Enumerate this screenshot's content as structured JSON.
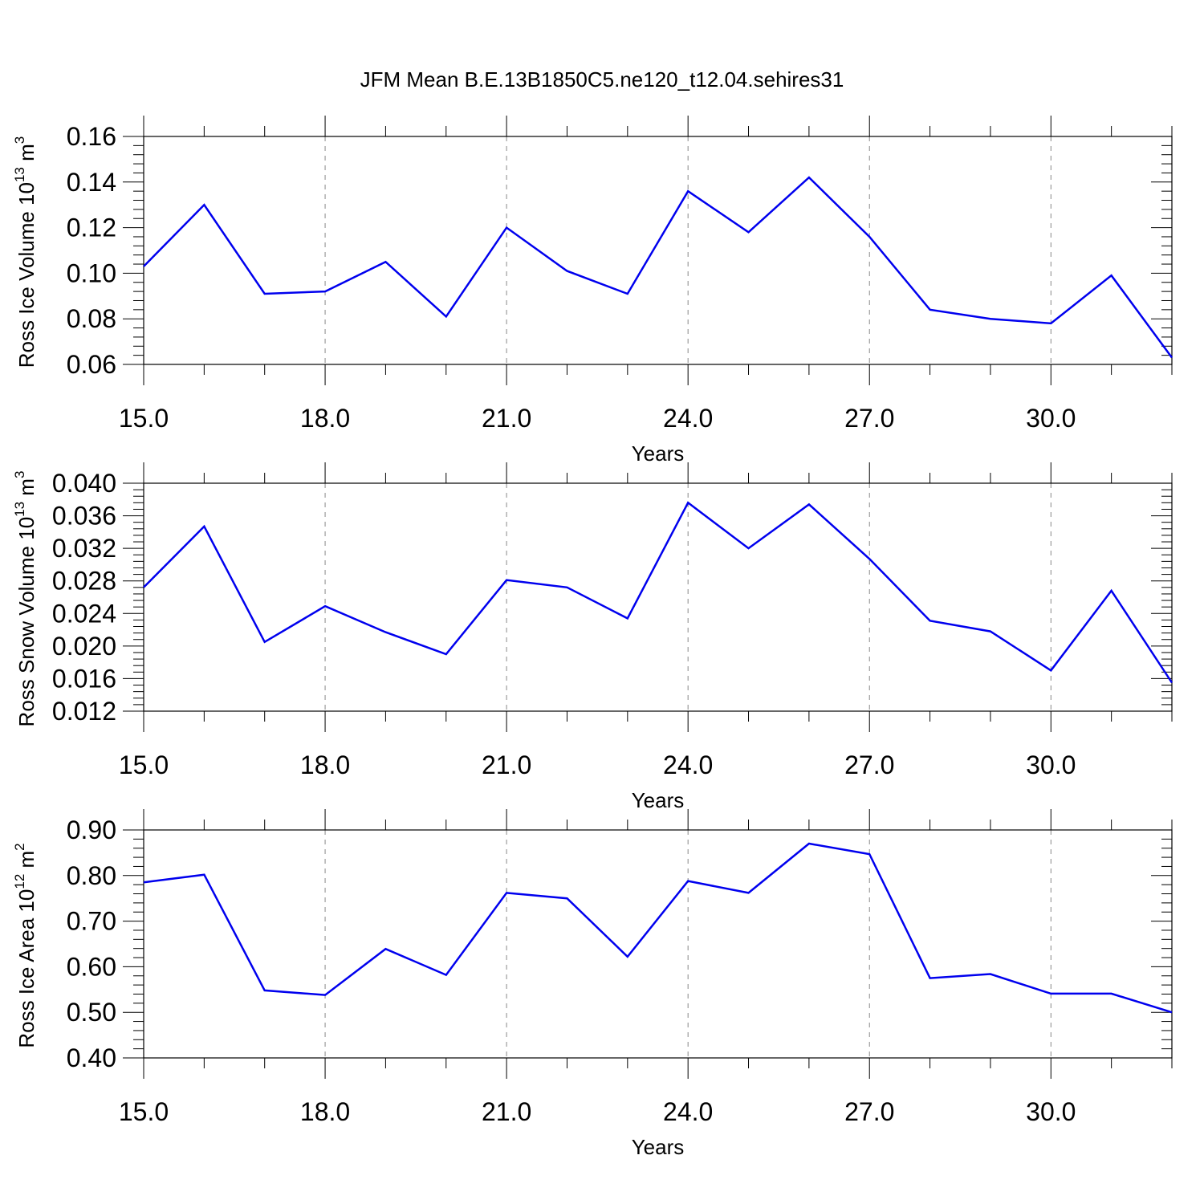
{
  "title": "JFM Mean B.E.13B1850C5.ne120_t12.04.sehires31",
  "colors": {
    "line": "#0000ee",
    "axis": "#000000",
    "grid": "#888888"
  },
  "chart_data": [
    {
      "type": "line",
      "xlabel": "Years",
      "ylabel": {
        "text": "Ross Ice Volume 10",
        "exp1": "13",
        "unit": " m",
        "exp2": "3"
      },
      "xlim": [
        15,
        32
      ],
      "ylim": [
        0.06,
        0.16
      ],
      "xticks": [
        15,
        18,
        21,
        24,
        27,
        30
      ],
      "xtick_labels": [
        "15.0",
        "18.0",
        "21.0",
        "24.0",
        "27.0",
        "30.0"
      ],
      "yticks": [
        0.06,
        0.08,
        0.1,
        0.12,
        0.14,
        0.16
      ],
      "ytick_labels": [
        "0.06",
        "0.08",
        "0.10",
        "0.12",
        "0.14",
        "0.16"
      ],
      "x": [
        15,
        16,
        17,
        18,
        19,
        20,
        21,
        22,
        23,
        24,
        25,
        26,
        27,
        28,
        29,
        30,
        31,
        32
      ],
      "values": [
        0.103,
        0.13,
        0.091,
        0.092,
        0.105,
        0.081,
        0.12,
        0.101,
        0.091,
        0.136,
        0.118,
        0.142,
        0.116,
        0.084,
        0.08,
        0.078,
        0.099,
        0.063
      ]
    },
    {
      "type": "line",
      "xlabel": "Years",
      "ylabel": {
        "text": "Ross Snow Volume 10",
        "exp1": "13",
        "unit": " m",
        "exp2": "3"
      },
      "xlim": [
        15,
        32
      ],
      "ylim": [
        0.012,
        0.04
      ],
      "xticks": [
        15,
        18,
        21,
        24,
        27,
        30
      ],
      "xtick_labels": [
        "15.0",
        "18.0",
        "21.0",
        "24.0",
        "27.0",
        "30.0"
      ],
      "yticks": [
        0.012,
        0.016,
        0.02,
        0.024,
        0.028,
        0.032,
        0.036,
        0.04
      ],
      "ytick_labels": [
        "0.012",
        "0.016",
        "0.020",
        "0.024",
        "0.028",
        "0.032",
        "0.036",
        "0.040"
      ],
      "x": [
        15,
        16,
        17,
        18,
        19,
        20,
        21,
        22,
        23,
        24,
        25,
        26,
        27,
        28,
        29,
        30,
        31,
        32
      ],
      "values": [
        0.0272,
        0.0347,
        0.0205,
        0.0249,
        0.0217,
        0.019,
        0.0281,
        0.0272,
        0.0234,
        0.0376,
        0.032,
        0.0374,
        0.0307,
        0.0231,
        0.0218,
        0.017,
        0.0268,
        0.0155
      ]
    },
    {
      "type": "line",
      "xlabel": "Years",
      "ylabel": {
        "text": "Ross Ice Area 10",
        "exp1": "12",
        "unit": " m",
        "exp2": "2"
      },
      "xlim": [
        15,
        32
      ],
      "ylim": [
        0.4,
        0.9
      ],
      "xticks": [
        15,
        18,
        21,
        24,
        27,
        30
      ],
      "xtick_labels": [
        "15.0",
        "18.0",
        "21.0",
        "24.0",
        "27.0",
        "30.0"
      ],
      "yticks": [
        0.4,
        0.5,
        0.6,
        0.7,
        0.8,
        0.9
      ],
      "ytick_labels": [
        "0.40",
        "0.50",
        "0.60",
        "0.70",
        "0.80",
        "0.90"
      ],
      "x": [
        15,
        16,
        17,
        18,
        19,
        20,
        21,
        22,
        23,
        24,
        25,
        26,
        27,
        28,
        29,
        30,
        31,
        32
      ],
      "values": [
        0.785,
        0.802,
        0.548,
        0.538,
        0.639,
        0.582,
        0.762,
        0.75,
        0.622,
        0.788,
        0.762,
        0.87,
        0.847,
        0.575,
        0.584,
        0.541,
        0.541,
        0.5
      ]
    }
  ]
}
